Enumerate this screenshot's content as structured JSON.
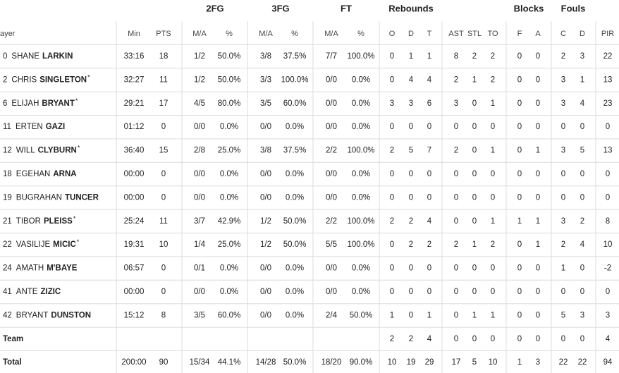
{
  "header": {
    "groups": [
      "2FG",
      "3FG",
      "FT",
      "Rebounds",
      "Blocks",
      "Fouls"
    ],
    "columns": [
      "ayer",
      "Min",
      "PTS",
      "M/A",
      "%",
      "M/A",
      "%",
      "M/A",
      "%",
      "O",
      "D",
      "T",
      "AST",
      "STL",
      "TO",
      "F",
      "A",
      "C",
      "D",
      "PIR"
    ]
  },
  "players": [
    {
      "number": "0",
      "first": "SHANE",
      "last": "LARKIN",
      "stats": [
        "33:16",
        "18",
        "1/2",
        "50.0%",
        "3/8",
        "37.5%",
        "7/7",
        "100.0%",
        "0",
        "1",
        "1",
        "8",
        "2",
        "2",
        "0",
        "0",
        "2",
        "3",
        "22"
      ]
    },
    {
      "number": "2",
      "first": "CHRIS",
      "last": "SINGLETON",
      "starter": "*",
      "stats": [
        "32:27",
        "11",
        "1/2",
        "50.0%",
        "3/3",
        "100.0%",
        "0/0",
        "0.0%",
        "0",
        "4",
        "4",
        "2",
        "1",
        "2",
        "0",
        "0",
        "3",
        "1",
        "13"
      ]
    },
    {
      "number": "6",
      "first": "ELIJAH",
      "last": "BRYANT",
      "starter": "*",
      "stats": [
        "29:21",
        "17",
        "4/5",
        "80.0%",
        "3/5",
        "60.0%",
        "0/0",
        "0.0%",
        "3",
        "3",
        "6",
        "3",
        "0",
        "1",
        "0",
        "0",
        "3",
        "4",
        "23"
      ]
    },
    {
      "number": "11",
      "first": "ERTEN",
      "last": "GAZI",
      "stats": [
        "01:12",
        "0",
        "0/0",
        "0.0%",
        "0/0",
        "0.0%",
        "0/0",
        "0.0%",
        "0",
        "0",
        "0",
        "0",
        "0",
        "0",
        "0",
        "0",
        "0",
        "0",
        "0"
      ]
    },
    {
      "number": "12",
      "first": "WILL",
      "last": "CLYBURN",
      "starter": "*",
      "stats": [
        "36:40",
        "15",
        "2/8",
        "25.0%",
        "3/8",
        "37.5%",
        "2/2",
        "100.0%",
        "2",
        "5",
        "7",
        "2",
        "0",
        "1",
        "0",
        "1",
        "3",
        "5",
        "13"
      ]
    },
    {
      "number": "18",
      "first": "EGEHAN",
      "last": "ARNA",
      "stats": [
        "00:00",
        "0",
        "0/0",
        "0.0%",
        "0/0",
        "0.0%",
        "0/0",
        "0.0%",
        "0",
        "0",
        "0",
        "0",
        "0",
        "0",
        "0",
        "0",
        "0",
        "0",
        "0"
      ]
    },
    {
      "number": "19",
      "first": "BUGRAHAN",
      "last": "TUNCER",
      "stats": [
        "00:00",
        "0",
        "0/0",
        "0.0%",
        "0/0",
        "0.0%",
        "0/0",
        "0.0%",
        "0",
        "0",
        "0",
        "0",
        "0",
        "0",
        "0",
        "0",
        "0",
        "0",
        "0"
      ]
    },
    {
      "number": "21",
      "first": "TIBOR",
      "last": "PLEISS",
      "starter": "*",
      "stats": [
        "25:24",
        "11",
        "3/7",
        "42.9%",
        "1/2",
        "50.0%",
        "2/2",
        "100.0%",
        "2",
        "2",
        "4",
        "0",
        "0",
        "1",
        "1",
        "1",
        "3",
        "2",
        "8"
      ]
    },
    {
      "number": "22",
      "first": "VASILIJE",
      "last": "MICIC",
      "starter": "*",
      "stats": [
        "19:31",
        "10",
        "1/4",
        "25.0%",
        "1/2",
        "50.0%",
        "5/5",
        "100.0%",
        "0",
        "2",
        "2",
        "2",
        "1",
        "2",
        "0",
        "1",
        "2",
        "4",
        "10"
      ]
    },
    {
      "number": "24",
      "first": "AMATH",
      "last": "M'BAYE",
      "stats": [
        "06:57",
        "0",
        "0/1",
        "0.0%",
        "0/0",
        "0.0%",
        "0/0",
        "0.0%",
        "0",
        "0",
        "0",
        "0",
        "0",
        "0",
        "0",
        "0",
        "1",
        "0",
        "-2"
      ]
    },
    {
      "number": "41",
      "first": "ANTE",
      "last": "ZIZIC",
      "stats": [
        "00:00",
        "0",
        "0/0",
        "0.0%",
        "0/0",
        "0.0%",
        "0/0",
        "0.0%",
        "0",
        "0",
        "0",
        "0",
        "0",
        "0",
        "0",
        "0",
        "0",
        "0",
        "0"
      ]
    },
    {
      "number": "42",
      "first": "BRYANT",
      "last": "DUNSTON",
      "stats": [
        "15:12",
        "8",
        "3/5",
        "60.0%",
        "0/0",
        "0.0%",
        "2/4",
        "50.0%",
        "1",
        "0",
        "1",
        "0",
        "1",
        "1",
        "0",
        "0",
        "5",
        "3",
        "3"
      ]
    }
  ],
  "team": {
    "label": "Team",
    "stats": [
      null,
      null,
      null,
      null,
      null,
      null,
      null,
      null,
      "2",
      "2",
      "4",
      "0",
      "0",
      "0",
      "0",
      "0",
      "0",
      "0",
      "4"
    ]
  },
  "total": {
    "label": "Total",
    "stats": [
      "200:00",
      "90",
      "15/34",
      "44.1%",
      "14/28",
      "50.0%",
      "18/20",
      "90.0%",
      "10",
      "19",
      "29",
      "17",
      "5",
      "10",
      "1",
      "3",
      "22",
      "22",
      "94"
    ]
  }
}
